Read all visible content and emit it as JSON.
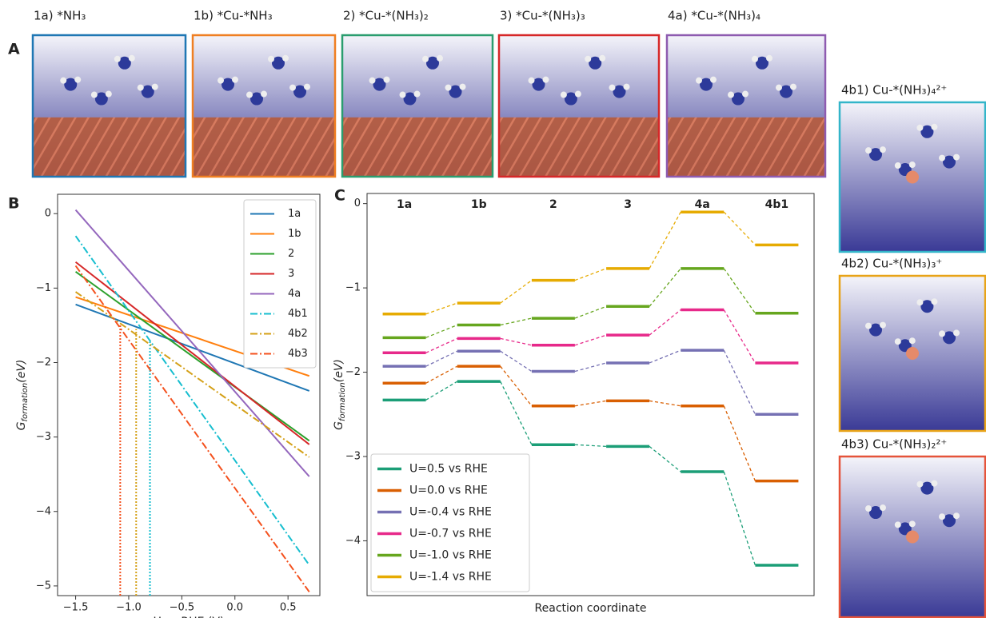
{
  "panel_labels": [
    "A",
    "B",
    "C"
  ],
  "structures": [
    "1a) *NH₃",
    "1b) *Cu-*NH₃",
    "2) *Cu-*(NH₃)₂",
    "3) *Cu-*(NH₃)₃",
    "4a) *Cu-*(NH₃)₄",
    "4b1) Cu-*(NH₃)₄²⁺",
    "4b2) Cu-*(NH₃)₃⁺",
    "4b3) Cu-*(NH₃)₂²⁺"
  ],
  "chart_data": [
    {
      "type": "line",
      "x": [
        -1.5,
        0.7
      ],
      "xlim": [
        -1.67,
        0.8
      ],
      "ylim": [
        -5.13,
        0.26
      ],
      "xticks": [
        {
          "value": -1.5,
          "label": "−1.5"
        },
        {
          "value": -1.0,
          "label": "−1.0"
        },
        {
          "value": -0.5,
          "label": "−0.5"
        },
        {
          "value": 0.0,
          "label": "0.0"
        },
        0.5
      ],
      "yticks": [
        0,
        {
          "value": -1,
          "label": "−1"
        },
        {
          "value": -2,
          "label": "−2"
        },
        {
          "value": -3,
          "label": "−3"
        },
        {
          "value": -4,
          "label": "−4"
        },
        {
          "value": -5,
          "label": "−5"
        }
      ],
      "xlabel": "U vs RHE (V)",
      "ylabel": {
        "symbol": "G",
        "sub": "formation",
        "unit": "(eV)"
      },
      "legend": "upper right",
      "series": [
        {
          "name": "1a",
          "color": "#1f77b4",
          "linestyle": "solid",
          "values": [
            -1.22,
            -2.38
          ]
        },
        {
          "name": "1b",
          "color": "#ff7f0e",
          "linestyle": "solid",
          "values": [
            -1.12,
            -2.18
          ]
        },
        {
          "name": "2",
          "color": "#2ca02c",
          "linestyle": "solid",
          "values": [
            -0.78,
            -3.05
          ]
        },
        {
          "name": "3",
          "color": "#d62728",
          "linestyle": "solid",
          "values": [
            -0.65,
            -3.1
          ]
        },
        {
          "name": "4a",
          "color": "#9467bd",
          "linestyle": "solid",
          "values": [
            0.05,
            -3.53
          ]
        },
        {
          "name": "4b1",
          "color": "#17becf",
          "linestyle": "dashdot",
          "values": [
            -0.3,
            -4.72
          ]
        },
        {
          "name": "4b2",
          "color": "#d4a017",
          "linestyle": "dashdot",
          "values": [
            -1.05,
            -3.27
          ]
        },
        {
          "name": "4b3",
          "color": "#f4511e",
          "linestyle": "dashdot",
          "values": [
            -0.7,
            -5.08
          ]
        }
      ],
      "vlines": [
        {
          "x": -1.08,
          "y": -1.48,
          "color": "#f4511e"
        },
        {
          "x": -0.93,
          "y": -1.55,
          "color": "#d4a017"
        },
        {
          "x": -0.8,
          "y": -1.72,
          "color": "#17becf"
        }
      ]
    },
    {
      "type": "step",
      "categories": [
        "1a",
        "1b",
        "2",
        "3",
        "4a",
        "4b1"
      ],
      "ylim": [
        -4.65,
        0.12
      ],
      "yticks": [
        0,
        {
          "value": -1,
          "label": "−1"
        },
        {
          "value": -2,
          "label": "−2"
        },
        {
          "value": -3,
          "label": "−3"
        },
        {
          "value": -4,
          "label": "−4"
        }
      ],
      "xlabel": "Reaction coordinate",
      "ylabel": {
        "symbol": "G",
        "sub": "formation",
        "unit": "(eV)"
      },
      "legend": "lower left",
      "series": [
        {
          "name": "U=0.5 vs RHE",
          "color": "#1b9e77",
          "values": [
            -2.33,
            -2.11,
            -2.86,
            -2.88,
            -3.18,
            -4.29
          ]
        },
        {
          "name": "U=0.0 vs RHE",
          "color": "#d95f02",
          "values": [
            -2.13,
            -1.93,
            -2.4,
            -2.34,
            -2.4,
            -3.29
          ]
        },
        {
          "name": "U=-0.4 vs RHE",
          "color": "#7570b3",
          "values": [
            -1.93,
            -1.75,
            -1.99,
            -1.89,
            -1.74,
            -2.5
          ]
        },
        {
          "name": "U=-0.7 vs RHE",
          "color": "#e7298a",
          "values": [
            -1.77,
            -1.6,
            -1.68,
            -1.56,
            -1.26,
            -1.89
          ]
        },
        {
          "name": "U=-1.0 vs RHE",
          "color": "#66a61e",
          "values": [
            -1.59,
            -1.44,
            -1.36,
            -1.22,
            -0.77,
            -1.3
          ]
        },
        {
          "name": "U=-1.4 vs RHE",
          "color": "#e6ab02",
          "values": [
            -1.31,
            -1.18,
            -0.91,
            -0.77,
            -0.1,
            -0.49
          ]
        }
      ]
    }
  ]
}
